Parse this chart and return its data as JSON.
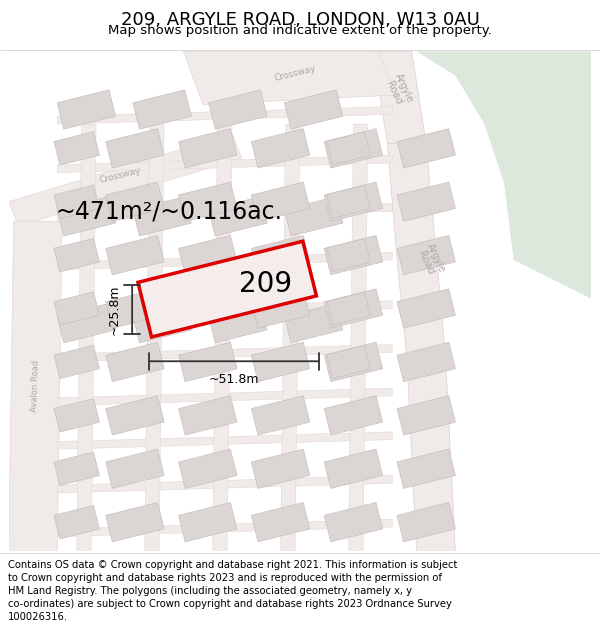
{
  "title": "209, ARGYLE ROAD, LONDON, W13 0AU",
  "subtitle": "Map shows position and indicative extent of the property.",
  "area_text": "~471m²/~0.116ac.",
  "property_number": "209",
  "width_label": "~51.8m",
  "height_label": "~25.8m",
  "footer_lines": [
    "Contains OS data © Crown copyright and database right 2021. This information is subject",
    "to Crown copyright and database rights 2023 and is reproduced with the permission of",
    "HM Land Registry. The polygons (including the associated geometry, namely x, y",
    "co-ordinates) are subject to Crown copyright and database rights 2023 Ordnance Survey",
    "100026316."
  ],
  "map_bg": "#f5f0ef",
  "road_fill": "#f0eae8",
  "road_edge": "#e0d0cc",
  "building_fill": "#dbd5d4",
  "building_edge": "#c8bfbc",
  "property_fill": "#f5ecec",
  "property_stroke": "#dd0000",
  "green_fill": "#dde8dc",
  "road_label_color": "#aaaaaa",
  "dim_color": "#333333",
  "title_fontsize": 13,
  "subtitle_fontsize": 9.5,
  "footer_fontsize": 7.2,
  "area_fontsize": 17,
  "num_fontsize": 20,
  "dim_fontsize": 9
}
